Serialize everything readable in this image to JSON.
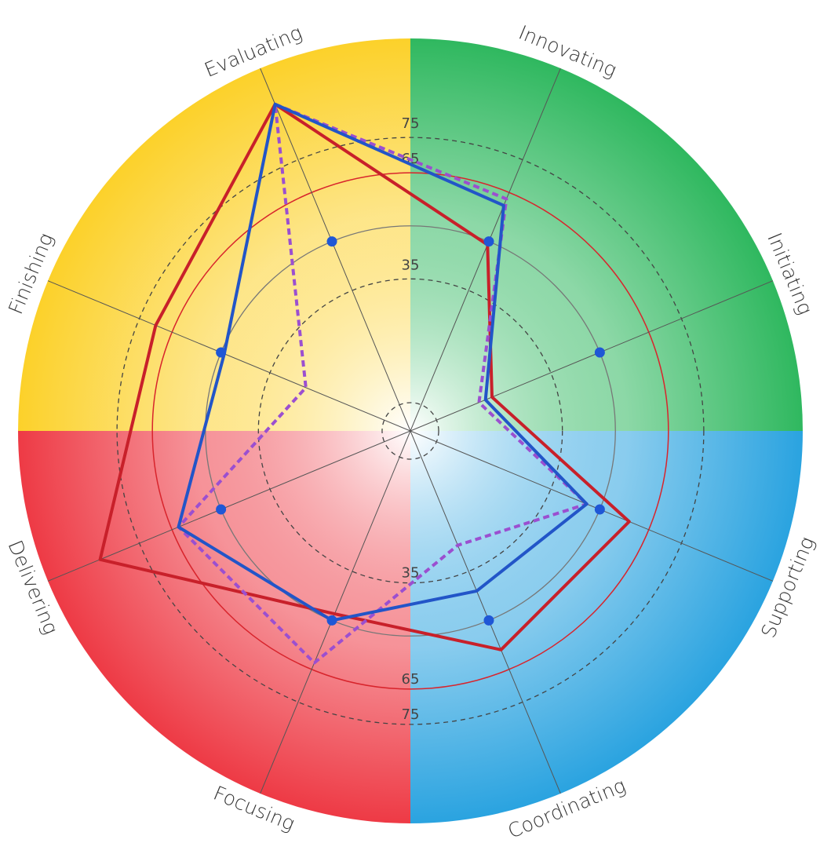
{
  "chart_data": {
    "type": "radar",
    "categories": [
      "Evaluating",
      "Innovating",
      "Initiating",
      "Supporting",
      "Coordinating",
      "Focusing",
      "Delivering",
      "Finishing"
    ],
    "rlim": [
      -8,
      103
    ],
    "rticks": [
      35,
      65,
      75
    ],
    "rings": [
      {
        "value": 0,
        "style": "dashed"
      },
      {
        "value": 35,
        "style": "dashed"
      },
      {
        "value": 50,
        "style": "solid"
      },
      {
        "value": 65,
        "style": "red"
      },
      {
        "value": 75,
        "style": "dashed"
      }
    ],
    "quadrant_colors": [
      "#fcd12a",
      "#2fb85f",
      "#2aa3e0",
      "#ee3a45"
    ],
    "series": [
      {
        "color": "#c8202a",
        "style": "line",
        "values": [
          92,
          49,
          17,
          59,
          59,
          48,
          87,
          70
        ]
      },
      {
        "color": "#9b4fd0",
        "style": "dashed",
        "values": [
          92,
          63,
          13,
          46,
          27,
          63,
          63,
          24
        ]
      },
      {
        "color": "#2255c8",
        "style": "line",
        "values": [
          92,
          61,
          15,
          46,
          41,
          50,
          63,
          49
        ]
      },
      {
        "color": "#1f57d6",
        "style": "dots",
        "values": [
          50,
          50,
          50,
          50,
          50,
          50,
          50,
          50
        ]
      }
    ]
  }
}
